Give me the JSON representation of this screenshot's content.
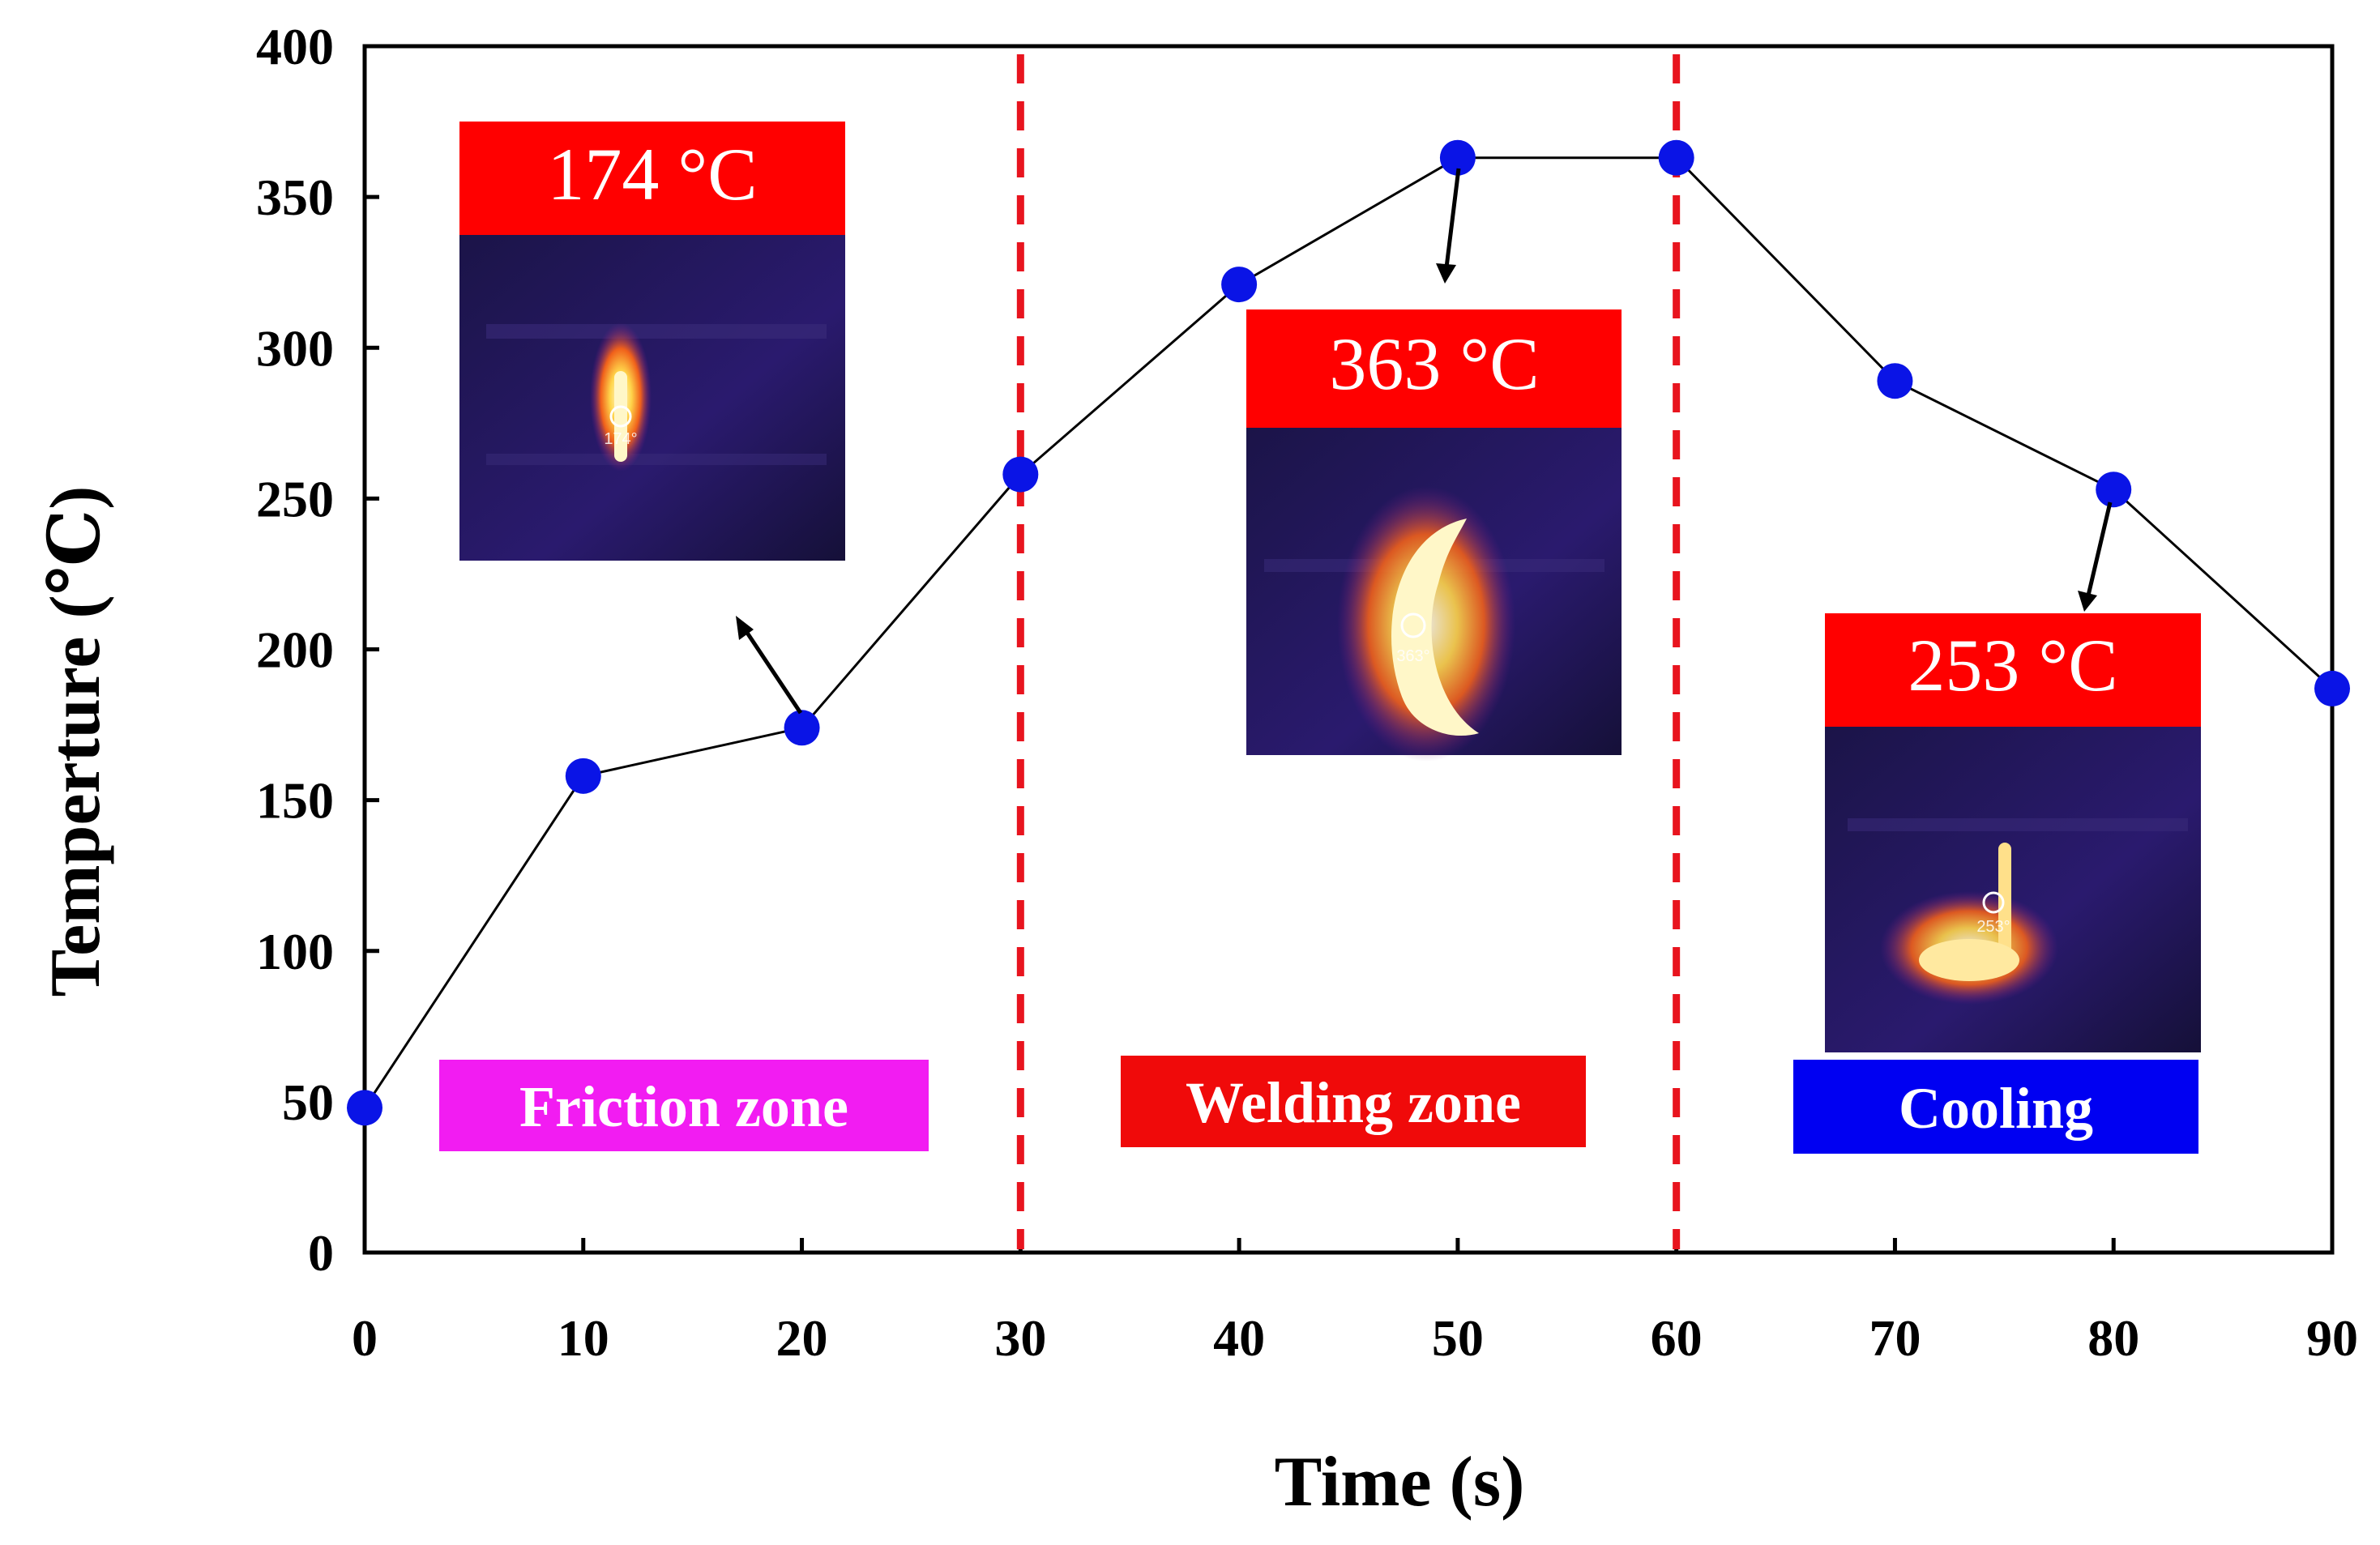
{
  "chart_data": {
    "type": "line",
    "title": "",
    "xlabel": "Time (s)",
    "ylabel": "Temperture (℃)",
    "xlim": [
      0,
      90
    ],
    "ylim": [
      0,
      400
    ],
    "xticks": [
      0,
      10,
      20,
      30,
      40,
      50,
      60,
      70,
      80,
      90
    ],
    "yticks": [
      0,
      50,
      100,
      150,
      200,
      250,
      300,
      350,
      400
    ],
    "x": [
      0,
      10,
      20,
      30,
      40,
      50,
      60,
      70,
      80,
      90
    ],
    "series": [
      {
        "name": "Temperature",
        "values": [
          48,
          158,
          174,
          258,
          321,
          363,
          363,
          289,
          253,
          187
        ],
        "color": "#000000",
        "marker_color": "#0a14e6"
      }
    ],
    "vlines": [
      {
        "x": 30,
        "color": "#e8141e",
        "style": "dashed"
      },
      {
        "x": 60,
        "color": "#e8141e",
        "style": "dashed"
      }
    ],
    "zones": [
      {
        "label": "Friction zone",
        "color": "#f21cf2"
      },
      {
        "label": "Welding zone",
        "color": "#f00a0a"
      },
      {
        "label": "Cooling",
        "color": "#0000f2"
      }
    ],
    "insets": [
      {
        "label": "174 °C",
        "reading": "174°",
        "header_color": "#ff0000",
        "points_to_x": 20
      },
      {
        "label": "363 °C",
        "reading": "363°",
        "header_color": "#ff0000",
        "points_to_x": 50
      },
      {
        "label": "253 °C",
        "reading": "253°",
        "header_color": "#ff0000",
        "points_to_x": 80
      }
    ]
  }
}
